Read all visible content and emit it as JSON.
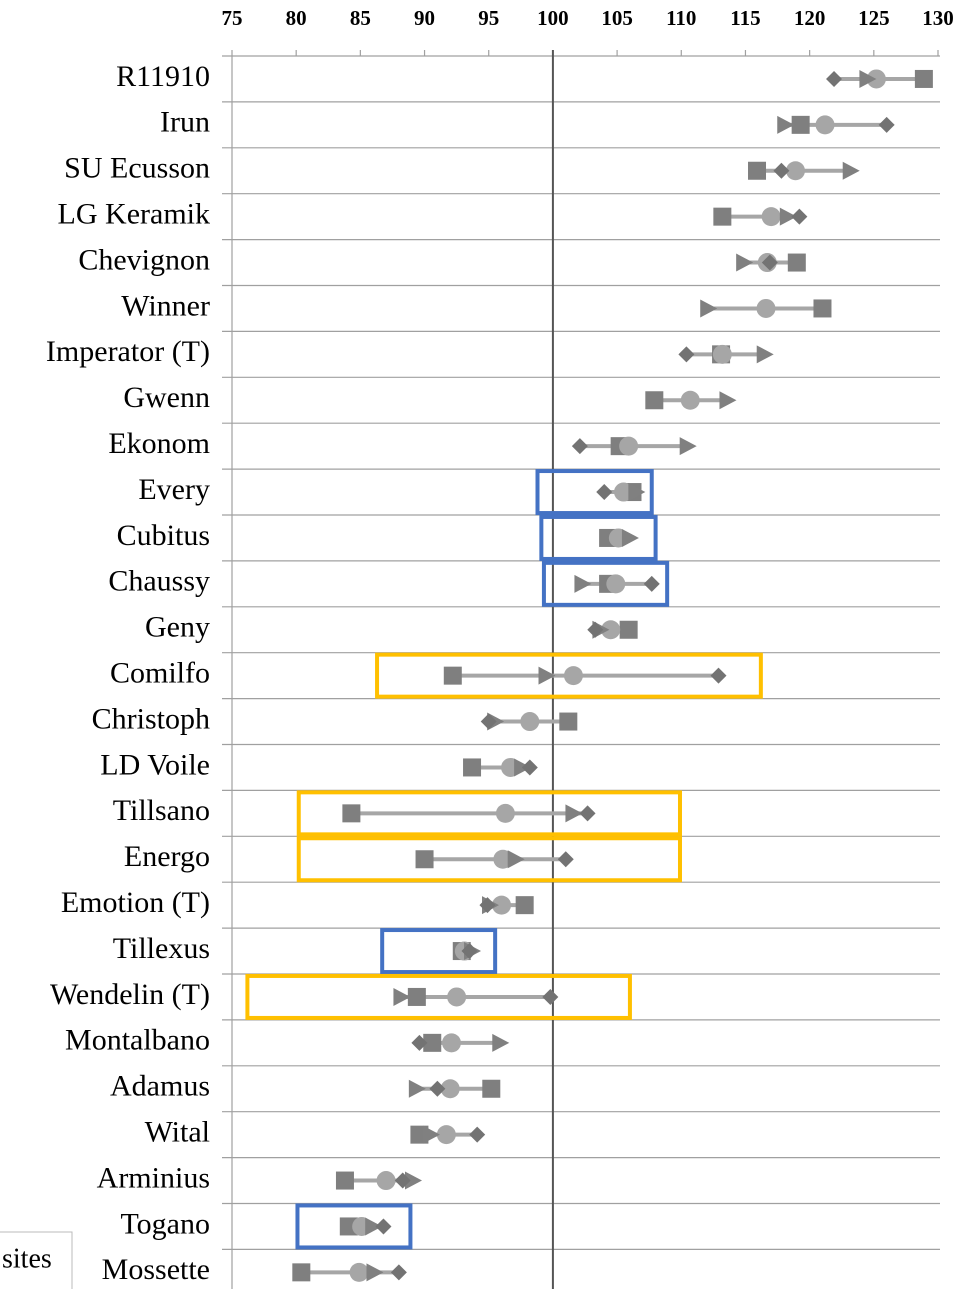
{
  "chart_data": {
    "type": "dot",
    "categories": [
      "R11910",
      "Irun",
      "SU Ecusson",
      "LG Keramik",
      "Chevignon",
      "Winner",
      "Imperator (T)",
      "Gwenn",
      "Ekonom",
      "Every",
      "Cubitus",
      "Chaussy",
      "Geny",
      "Comilfo",
      "Christoph",
      "LD Voile",
      "Tillsano",
      "Energo",
      "Emotion (T)",
      "Tillexus",
      "Wendelin (T)",
      "Montalbano",
      "Adamus",
      "Wital",
      "Arminius",
      "Togano",
      "Mossette"
    ],
    "series": [
      {
        "marker": "square",
        "color": "#7f7f7f",
        "values": [
          128.9,
          119.3,
          115.9,
          113.2,
          119.0,
          121.0,
          113.1,
          107.9,
          105.2,
          106.2,
          104.3,
          104.3,
          105.9,
          92.2,
          101.2,
          93.7,
          84.3,
          90.0,
          97.8,
          92.9,
          89.4,
          90.6,
          95.2,
          89.6,
          83.8,
          84.1,
          80.4
        ]
      },
      {
        "marker": "circle",
        "color": "#a6a6a6",
        "values": [
          125.2,
          121.2,
          118.9,
          117.0,
          116.7,
          116.6,
          113.2,
          110.7,
          105.9,
          105.5,
          105.1,
          104.9,
          104.5,
          101.6,
          98.2,
          96.7,
          96.3,
          96.1,
          96.0,
          93.1,
          92.5,
          92.1,
          92.0,
          91.7,
          87.0,
          85.1,
          84.9
        ]
      },
      {
        "marker": "triangle",
        "color": "#808080",
        "values": [
          124.5,
          118.1,
          123.2,
          118.3,
          114.9,
          112.1,
          116.5,
          113.6,
          110.5,
          106.5,
          106.0,
          102.3,
          103.7,
          99.5,
          95.5,
          97.6,
          101.6,
          97.1,
          95.1,
          93.7,
          88.2,
          95.9,
          89.4,
          90.5,
          89.1,
          86.0,
          86.1
        ]
      },
      {
        "marker": "diamond",
        "color": "#737373",
        "values": [
          121.9,
          126.0,
          117.8,
          119.2,
          116.9,
          null,
          110.4,
          null,
          102.1,
          104.0,
          null,
          107.7,
          103.3,
          112.9,
          95.0,
          98.2,
          102.7,
          101.0,
          94.9,
          93.5,
          99.8,
          89.6,
          91.0,
          94.1,
          88.3,
          86.8,
          88.0
        ]
      }
    ],
    "line_color": "#a6a6a6",
    "xlim": [
      75,
      130
    ],
    "xticks": [
      75,
      80,
      85,
      90,
      95,
      100,
      105,
      110,
      115,
      120,
      125,
      130
    ],
    "reference_line": 100,
    "highlights": [
      {
        "category": 9,
        "color": "#4472c4",
        "range": [
          98.8,
          107.7
        ]
      },
      {
        "category": 10,
        "color": "#4472c4",
        "range": [
          99.1,
          108.0
        ]
      },
      {
        "category": 11,
        "color": "#4472c4",
        "range": [
          99.3,
          108.9
        ]
      },
      {
        "category": 19,
        "color": "#4472c4",
        "range": [
          86.7,
          95.5
        ]
      },
      {
        "category": 25,
        "color": "#4472c4",
        "range": [
          80.1,
          88.9
        ]
      },
      {
        "category": 13,
        "color": "#ffc000",
        "range": [
          86.3,
          116.2
        ]
      },
      {
        "category": 16,
        "color": "#ffc000",
        "range": [
          80.2,
          109.9
        ]
      },
      {
        "category": 17,
        "color": "#ffc000",
        "range": [
          80.2,
          109.9
        ]
      },
      {
        "category": 20,
        "color": "#ffc000",
        "range": [
          76.2,
          106.0
        ]
      }
    ],
    "overlay_label": "sites"
  }
}
